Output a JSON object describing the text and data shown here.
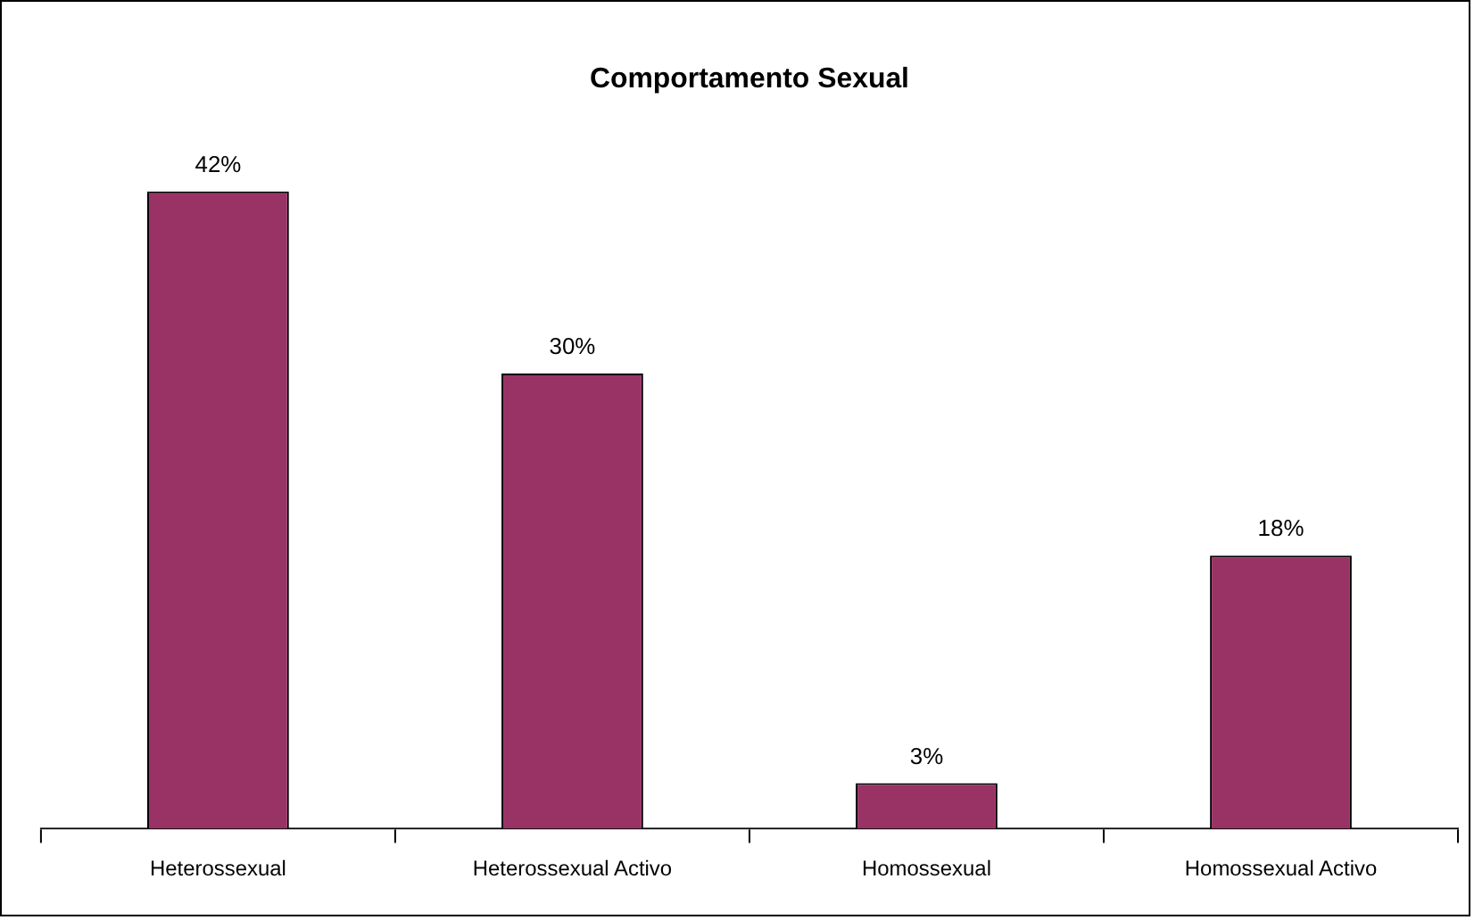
{
  "chart_data": {
    "type": "bar",
    "title": "Comportamento Sexual",
    "categories": [
      "Heterossexual",
      "Heterossexual Activo",
      "Homossexual",
      "Homossexual Activo"
    ],
    "values": [
      42,
      30,
      3,
      18
    ],
    "value_labels": [
      "42%",
      "30%",
      "3%",
      "18%"
    ],
    "color": "#993366",
    "tick_labels": "x",
    "grid": false,
    "legend": false
  }
}
